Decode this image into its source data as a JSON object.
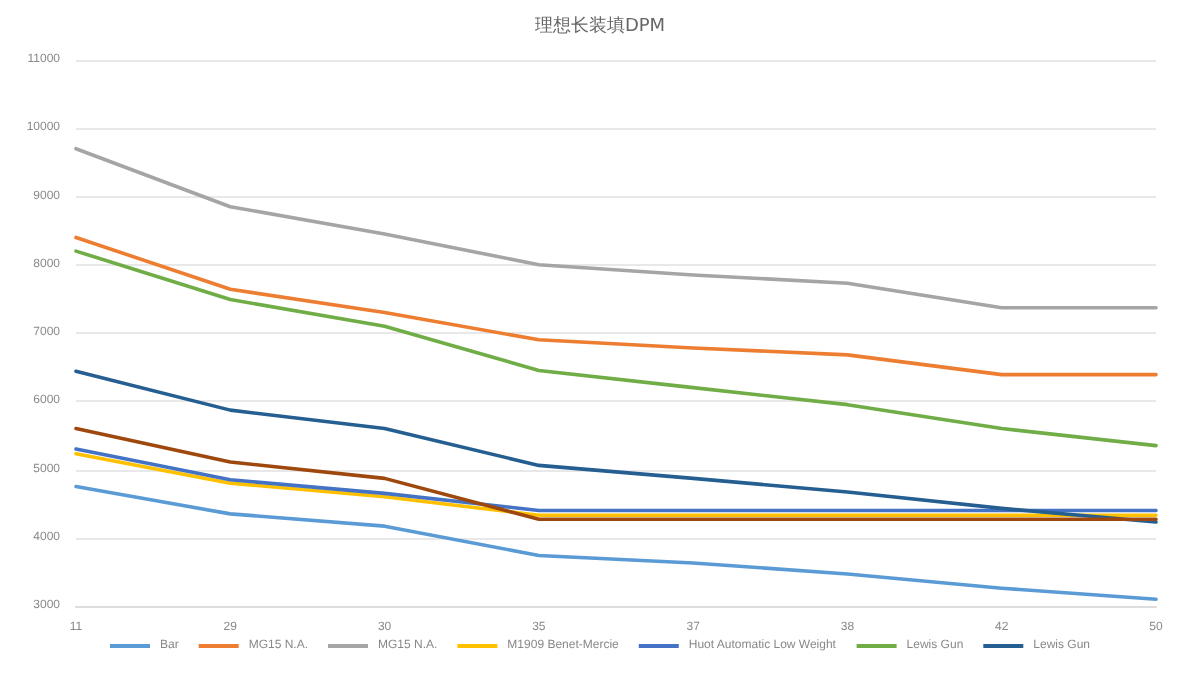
{
  "chart_data": {
    "type": "line",
    "title": "理想长装填DPM",
    "categories": [
      "11",
      "29",
      "30",
      "35",
      "37",
      "38",
      "42",
      "50"
    ],
    "series": [
      {
        "name": "Bar",
        "color": "#5b9bd5",
        "values": [
          4750,
          4350,
          4170,
          3740,
          3630,
          3470,
          3260,
          3100
        ]
      },
      {
        "name": "MG15 N.A.",
        "color": "#ed7d31",
        "values": [
          8400,
          7640,
          7300,
          6900,
          6780,
          6680,
          6390,
          6390
        ]
      },
      {
        "name": "MG15 N.A.",
        "color": "#a5a5a5",
        "values": [
          9700,
          8850,
          8450,
          8000,
          7850,
          7730,
          7370,
          7370
        ]
      },
      {
        "name": "M1909 Benet-Mercie",
        "color": "#ffc000",
        "values": [
          5230,
          4800,
          4600,
          4330,
          4330,
          4330,
          4330,
          4330
        ]
      },
      {
        "name": "Huot Automatic Low Weight",
        "color": "#4472c4",
        "values": [
          5300,
          4850,
          4650,
          4400,
          4400,
          4400,
          4400,
          4400
        ]
      },
      {
        "name": "Lewis Gun",
        "color": "#70ad47",
        "values": [
          8200,
          7490,
          7100,
          6450,
          6200,
          5950,
          5600,
          5350
        ]
      },
      {
        "name": "Lewis Gun",
        "color": "#255e91",
        "values": [
          6440,
          5870,
          5600,
          5060,
          4870,
          4670,
          4430,
          4230
        ]
      },
      {
        "color": "#9e480e",
        "values": [
          5600,
          5110,
          4870,
          4270,
          4270,
          4270,
          4270,
          4270
        ]
      }
    ],
    "ylim": [
      3000,
      11000
    ],
    "yticks": [
      3000,
      4000,
      5000,
      6000,
      7000,
      8000,
      9000,
      10000,
      11000
    ],
    "grid": "y",
    "legend": "bottom",
    "marker": "none",
    "line_style": "solid"
  }
}
